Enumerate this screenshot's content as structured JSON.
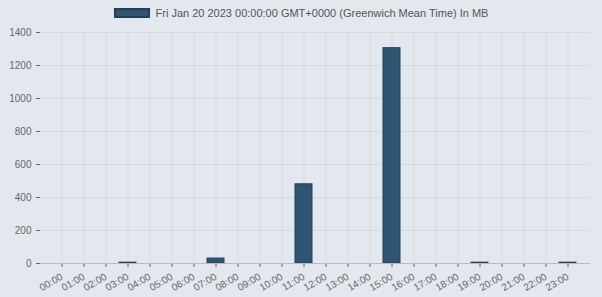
{
  "chart_data": {
    "type": "bar",
    "categories": [
      "00:00",
      "01:00",
      "02:00",
      "03:00",
      "04:00",
      "05:00",
      "06:00",
      "07:00",
      "08:00",
      "09:00",
      "10:00",
      "11:00",
      "12:00",
      "13:00",
      "14:00",
      "15:00",
      "16:00",
      "17:00",
      "18:00",
      "19:00",
      "20:00",
      "21:00",
      "22:00",
      "23:00"
    ],
    "series": [
      {
        "name": "Fri Jan 20 2023 00:00:00 GMT+0000 (Greenwich Mean Time) In MB",
        "color": "#2e5572",
        "values": [
          0,
          0,
          0,
          5,
          0,
          0,
          0,
          30,
          0,
          0,
          0,
          480,
          0,
          0,
          0,
          1305,
          0,
          0,
          0,
          5,
          0,
          0,
          0,
          5
        ]
      }
    ],
    "ylim": [
      0,
      1400
    ],
    "yticks": [
      0,
      200,
      400,
      600,
      800,
      1000,
      1200,
      1400
    ],
    "grid": true,
    "legend": "top"
  }
}
